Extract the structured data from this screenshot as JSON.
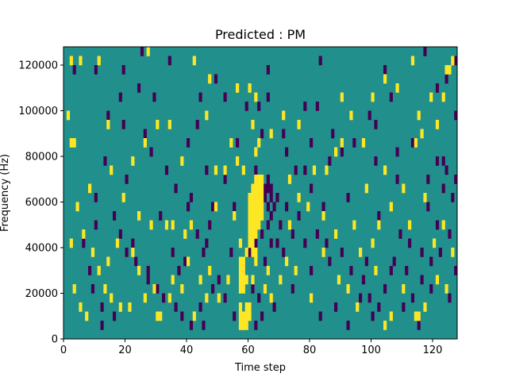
{
  "chart_data": {
    "type": "heatmap",
    "title": "Predicted : PM",
    "xlabel": "Time step",
    "ylabel": "Frequency (Hz)",
    "xlim": [
      0,
      128
    ],
    "ylim": [
      0,
      128000
    ],
    "xticks": [
      0,
      20,
      40,
      60,
      80,
      100,
      120
    ],
    "yticks": [
      0,
      20000,
      40000,
      60000,
      80000,
      100000,
      120000
    ],
    "colormap": "viridis",
    "background_value": 0,
    "value_colors": {
      "-1": "#440154",
      "0": "#21908d",
      "1": "#fde725"
    },
    "cell_size": {
      "time_steps": 1,
      "frequency_hz": 4000
    },
    "cells_positive": [
      [
        2,
        120000
      ],
      [
        5,
        120000
      ],
      [
        11,
        120000
      ],
      [
        27,
        124000
      ],
      [
        42,
        120000
      ],
      [
        47,
        112000
      ],
      [
        56,
        108000
      ],
      [
        60,
        108000
      ],
      [
        62,
        104000
      ],
      [
        76,
        92000
      ],
      [
        76,
        60000
      ],
      [
        67,
        88000
      ],
      [
        71,
        96000
      ],
      [
        90,
        104000
      ],
      [
        93,
        96000
      ],
      [
        100,
        104000
      ],
      [
        104,
        112000
      ],
      [
        108,
        108000
      ],
      [
        113,
        120000
      ],
      [
        115,
        96000
      ],
      [
        126,
        120000
      ],
      [
        125,
        116000
      ],
      [
        124,
        116000
      ],
      [
        119,
        104000
      ],
      [
        121,
        92000
      ],
      [
        123,
        104000
      ],
      [
        2,
        84000
      ],
      [
        3,
        84000
      ],
      [
        1,
        96000
      ],
      [
        14,
        92000
      ],
      [
        22,
        76000
      ],
      [
        26,
        84000
      ],
      [
        30,
        92000
      ],
      [
        34,
        92000
      ],
      [
        38,
        76000
      ],
      [
        46,
        96000
      ],
      [
        49,
        72000
      ],
      [
        52,
        72000
      ],
      [
        54,
        84000
      ],
      [
        56,
        76000
      ],
      [
        61,
        92000
      ],
      [
        63,
        84000
      ],
      [
        58,
        72000
      ],
      [
        73,
        68000
      ],
      [
        81,
        72000
      ],
      [
        85,
        72000
      ],
      [
        90,
        84000
      ],
      [
        97,
        84000
      ],
      [
        104,
        72000
      ],
      [
        98,
        64000
      ],
      [
        8,
        64000
      ],
      [
        15,
        72000
      ],
      [
        19,
        60000
      ],
      [
        24,
        52000
      ],
      [
        28,
        48000
      ],
      [
        33,
        48000
      ],
      [
        39,
        44000
      ],
      [
        41,
        48000
      ],
      [
        49,
        56000
      ],
      [
        55,
        52000
      ],
      [
        4,
        56000
      ],
      [
        6,
        44000
      ],
      [
        9,
        36000
      ],
      [
        11,
        28000
      ],
      [
        14,
        32000
      ],
      [
        17,
        40000
      ],
      [
        22,
        36000
      ],
      [
        24,
        28000
      ],
      [
        29,
        20000
      ],
      [
        35,
        24000
      ],
      [
        40,
        32000
      ],
      [
        44,
        24000
      ],
      [
        47,
        28000
      ],
      [
        50,
        16000
      ],
      [
        53,
        24000
      ],
      [
        3,
        20000
      ],
      [
        5,
        12000
      ],
      [
        13,
        20000
      ],
      [
        15,
        16000
      ],
      [
        21,
        12000
      ],
      [
        30,
        8000
      ],
      [
        31,
        8000
      ],
      [
        34,
        16000
      ],
      [
        38,
        20000
      ],
      [
        42,
        8000
      ],
      [
        46,
        16000
      ],
      [
        7,
        8000
      ],
      [
        18,
        12000
      ],
      [
        26,
        16000
      ],
      [
        2,
        40000
      ],
      [
        73,
        48000
      ],
      [
        79,
        56000
      ],
      [
        84,
        52000
      ],
      [
        88,
        44000
      ],
      [
        94,
        48000
      ],
      [
        96,
        36000
      ],
      [
        100,
        40000
      ],
      [
        106,
        56000
      ],
      [
        110,
        64000
      ],
      [
        112,
        48000
      ],
      [
        117,
        60000
      ],
      [
        120,
        40000
      ],
      [
        123,
        48000
      ],
      [
        126,
        36000
      ],
      [
        70,
        24000
      ],
      [
        75,
        28000
      ],
      [
        80,
        16000
      ],
      [
        84,
        36000
      ],
      [
        89,
        24000
      ],
      [
        92,
        20000
      ],
      [
        95,
        12000
      ],
      [
        101,
        28000
      ],
      [
        104,
        4000
      ],
      [
        106,
        8000
      ],
      [
        110,
        20000
      ],
      [
        114,
        8000
      ],
      [
        115,
        8000
      ],
      [
        117,
        12000
      ],
      [
        121,
        24000
      ],
      [
        124,
        20000
      ],
      [
        114,
        84000
      ],
      [
        116,
        88000
      ],
      [
        35,
        48000
      ],
      [
        58,
        24000
      ],
      [
        65,
        20000
      ],
      [
        66,
        28000
      ],
      [
        67,
        16000
      ],
      [
        72,
        32000
      ],
      [
        88,
        80000
      ],
      [
        102,
        48000
      ]
    ],
    "positive_columns": [
      {
        "t": 57,
        "ranges": [
          [
            4000,
            16000
          ],
          [
            20000,
            36000
          ],
          [
            40000,
            44000
          ]
        ]
      },
      {
        "t": 58,
        "ranges": [
          [
            4000,
            12000
          ],
          [
            20000,
            36000
          ]
        ]
      },
      {
        "t": 59,
        "ranges": [
          [
            4000,
            16000
          ],
          [
            24000,
            28000
          ],
          [
            36000,
            40000
          ]
        ]
      },
      {
        "t": 60,
        "ranges": [
          [
            8000,
            16000
          ],
          [
            40000,
            64000
          ]
        ]
      },
      {
        "t": 61,
        "ranges": [
          [
            24000,
            28000
          ],
          [
            36000,
            68000
          ]
        ]
      },
      {
        "t": 62,
        "ranges": [
          [
            32000,
            40000
          ],
          [
            44000,
            72000
          ],
          [
            80000,
            84000
          ]
        ]
      },
      {
        "t": 63,
        "ranges": [
          [
            48000,
            72000
          ]
        ]
      },
      {
        "t": 64,
        "ranges": [
          [
            52000,
            72000
          ]
        ]
      }
    ],
    "cells_negative": [
      [
        25,
        124000
      ],
      [
        34,
        120000
      ],
      [
        3,
        116000
      ],
      [
        10,
        116000
      ],
      [
        19,
        116000
      ],
      [
        49,
        112000
      ],
      [
        66,
        116000
      ],
      [
        83,
        120000
      ],
      [
        117,
        124000
      ],
      [
        127,
        120000
      ],
      [
        66,
        104000
      ],
      [
        24,
        108000
      ],
      [
        18,
        104000
      ],
      [
        29,
        104000
      ],
      [
        44,
        104000
      ],
      [
        52,
        104000
      ],
      [
        59,
        100000
      ],
      [
        78,
        100000
      ],
      [
        82,
        100000
      ],
      [
        99,
        96000
      ],
      [
        106,
        104000
      ],
      [
        127,
        96000
      ],
      [
        124,
        112000
      ],
      [
        121,
        108000
      ],
      [
        43,
        92000
      ],
      [
        40,
        84000
      ],
      [
        56,
        84000
      ],
      [
        64,
        88000
      ],
      [
        71,
        88000
      ],
      [
        80,
        84000
      ],
      [
        87,
        88000
      ],
      [
        94,
        84000
      ],
      [
        101,
        92000
      ],
      [
        108,
        80000
      ],
      [
        113,
        84000
      ],
      [
        121,
        76000
      ],
      [
        124,
        72000
      ],
      [
        127,
        68000
      ],
      [
        46,
        72000
      ],
      [
        52,
        68000
      ],
      [
        62,
        72000
      ],
      [
        66,
        68000
      ],
      [
        78,
        72000
      ],
      [
        80,
        64000
      ],
      [
        86,
        76000
      ],
      [
        90,
        80000
      ],
      [
        101,
        76000
      ],
      [
        108,
        68000
      ],
      [
        118,
        68000
      ],
      [
        123,
        76000
      ],
      [
        19,
        92000
      ],
      [
        26,
        88000
      ],
      [
        33,
        72000
      ],
      [
        36,
        64000
      ],
      [
        41,
        60000
      ],
      [
        48,
        56000
      ],
      [
        55,
        56000
      ],
      [
        60,
        52000
      ],
      [
        65,
        60000
      ],
      [
        67,
        52000
      ],
      [
        69,
        60000
      ],
      [
        70,
        48000
      ],
      [
        72,
        56000
      ],
      [
        74,
        44000
      ],
      [
        76,
        52000
      ],
      [
        78,
        40000
      ],
      [
        82,
        44000
      ],
      [
        85,
        40000
      ],
      [
        86,
        32000
      ],
      [
        90,
        36000
      ],
      [
        93,
        28000
      ],
      [
        97,
        24000
      ],
      [
        99,
        16000
      ],
      [
        102,
        12000
      ],
      [
        104,
        20000
      ],
      [
        107,
        32000
      ],
      [
        111,
        28000
      ],
      [
        113,
        16000
      ],
      [
        116,
        24000
      ],
      [
        119,
        32000
      ],
      [
        122,
        36000
      ],
      [
        125,
        44000
      ],
      [
        127,
        28000
      ],
      [
        10,
        60000
      ],
      [
        13,
        76000
      ],
      [
        16,
        52000
      ],
      [
        18,
        44000
      ],
      [
        20,
        36000
      ],
      [
        23,
        32000
      ],
      [
        27,
        24000
      ],
      [
        30,
        20000
      ],
      [
        32,
        16000
      ],
      [
        36,
        12000
      ],
      [
        38,
        8000
      ],
      [
        41,
        4000
      ],
      [
        44,
        12000
      ],
      [
        45,
        4000
      ],
      [
        48,
        20000
      ],
      [
        52,
        16000
      ],
      [
        55,
        8000
      ],
      [
        58,
        28000
      ],
      [
        60,
        36000
      ],
      [
        62,
        40000
      ],
      [
        64,
        44000
      ],
      [
        65,
        32000
      ],
      [
        66,
        64000
      ],
      [
        67,
        60000
      ],
      [
        68,
        56000
      ],
      [
        69,
        40000
      ],
      [
        71,
        36000
      ],
      [
        6,
        40000
      ],
      [
        8,
        28000
      ],
      [
        9,
        20000
      ],
      [
        12,
        12000
      ],
      [
        16,
        8000
      ],
      [
        22,
        40000
      ],
      [
        27,
        28000
      ],
      [
        31,
        52000
      ],
      [
        35,
        36000
      ],
      [
        37,
        28000
      ],
      [
        40,
        56000
      ],
      [
        43,
        44000
      ],
      [
        45,
        36000
      ],
      [
        47,
        48000
      ],
      [
        50,
        24000
      ],
      [
        54,
        36000
      ],
      [
        68,
        12000
      ],
      [
        74,
        20000
      ],
      [
        80,
        28000
      ],
      [
        83,
        8000
      ],
      [
        88,
        12000
      ],
      [
        92,
        4000
      ],
      [
        96,
        16000
      ],
      [
        100,
        8000
      ],
      [
        106,
        28000
      ],
      [
        110,
        12000
      ],
      [
        115,
        4000
      ],
      [
        119,
        20000
      ],
      [
        121,
        48000
      ],
      [
        125,
        16000
      ],
      [
        102,
        52000
      ],
      [
        109,
        44000
      ],
      [
        112,
        40000
      ],
      [
        118,
        56000
      ],
      [
        123,
        64000
      ],
      [
        126,
        60000
      ],
      [
        116,
        36000
      ],
      [
        98,
        32000
      ],
      [
        92,
        60000
      ],
      [
        84,
        56000
      ],
      [
        10,
        48000
      ],
      [
        14,
        96000
      ],
      [
        20,
        68000
      ],
      [
        28,
        80000
      ],
      [
        39,
        32000
      ],
      [
        46,
        40000
      ],
      [
        63,
        100000
      ],
      [
        72,
        80000
      ],
      [
        75,
        72000
      ],
      [
        104,
        116000
      ],
      [
        60,
        12000
      ],
      [
        61,
        20000
      ],
      [
        63,
        16000
      ],
      [
        64,
        8000
      ],
      [
        62,
        4000
      ],
      [
        12,
        4000
      ]
    ],
    "negative_columns": [
      {
        "t": 65,
        "ranges": [
          [
            60000,
            68000
          ]
        ]
      },
      {
        "t": 66,
        "ranges": [
          [
            48000,
            52000
          ],
          [
            56000,
            60000
          ]
        ]
      },
      {
        "t": 67,
        "ranges": [
          [
            40000,
            44000
          ],
          [
            64000,
            68000
          ]
        ]
      }
    ]
  }
}
